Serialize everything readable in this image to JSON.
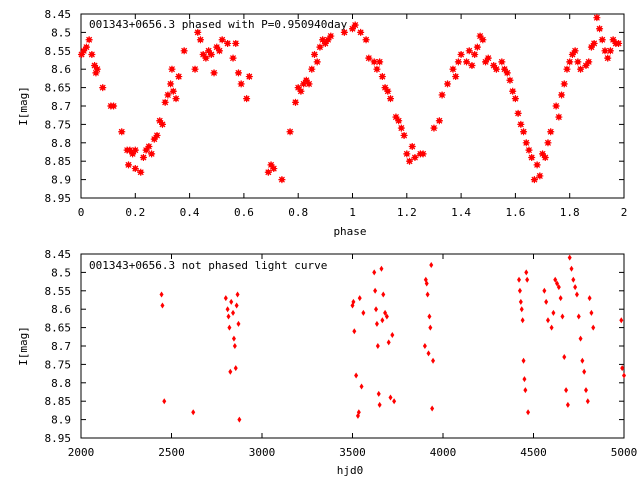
{
  "colors": {
    "points": "#ff0000",
    "frame": "#000000",
    "background": "#ffffff"
  },
  "chart_data": [
    {
      "type": "scatter",
      "title": "001343+0656.3 phased with P=0.950940day",
      "xlabel": "phase",
      "ylabel": "I[mag]",
      "xlim": [
        0,
        2
      ],
      "ylim": [
        8.95,
        8.45
      ],
      "y_inverted": true,
      "grid": false,
      "legend": "none",
      "xticks": [
        "0",
        "0.2",
        "0.4",
        "0.6",
        "0.8",
        "1",
        "1.2",
        "1.4",
        "1.6",
        "1.8",
        "2"
      ],
      "yticks": [
        "8.45",
        "8.5",
        "8.55",
        "8.6",
        "8.65",
        "8.7",
        "8.75",
        "8.8",
        "8.85",
        "8.9",
        "8.95"
      ],
      "marker": "filled-circle-cross",
      "x": [
        0.002,
        0.01,
        0.02,
        0.03,
        0.04,
        0.05,
        0.055,
        0.06,
        0.08,
        0.11,
        0.12,
        0.15,
        0.17,
        0.175,
        0.18,
        0.19,
        0.2,
        0.2,
        0.22,
        0.23,
        0.24,
        0.25,
        0.26,
        0.27,
        0.28,
        0.29,
        0.3,
        0.31,
        0.32,
        0.33,
        0.335,
        0.34,
        0.35,
        0.36,
        0.38,
        0.42,
        0.43,
        0.44,
        0.45,
        0.46,
        0.47,
        0.48,
        0.49,
        0.5,
        0.51,
        0.52,
        0.54,
        0.56,
        0.57,
        0.58,
        0.59,
        0.61,
        0.62,
        0.69,
        0.7,
        0.71,
        0.74,
        0.77,
        0.79,
        0.8,
        0.81,
        0.82,
        0.83,
        0.84,
        0.85,
        0.86,
        0.87,
        0.88,
        0.89,
        0.9,
        0.91,
        0.92,
        0.97,
        1.0,
        1.01,
        1.03,
        1.05,
        1.06,
        1.08,
        1.09,
        1.1,
        1.11,
        1.12,
        1.13,
        1.14,
        1.16,
        1.17,
        1.18,
        1.19,
        1.2,
        1.21,
        1.22,
        1.23,
        1.25,
        1.26,
        1.3,
        1.32,
        1.33,
        1.35,
        1.37,
        1.38,
        1.39,
        1.4,
        1.42,
        1.43,
        1.44,
        1.45,
        1.46,
        1.47,
        1.48,
        1.49,
        1.5,
        1.52,
        1.53,
        1.55,
        1.56,
        1.57,
        1.58,
        1.59,
        1.6,
        1.61,
        1.62,
        1.63,
        1.64,
        1.65,
        1.66,
        1.67,
        1.68,
        1.69,
        1.7,
        1.71,
        1.72,
        1.73,
        1.75,
        1.76,
        1.77,
        1.78,
        1.79,
        1.8,
        1.81,
        1.82,
        1.83,
        1.84,
        1.86,
        1.87,
        1.88,
        1.89,
        1.9,
        1.91,
        1.92,
        1.93,
        1.94,
        1.95,
        1.96,
        1.97,
        1.98
      ],
      "y": [
        8.56,
        8.55,
        8.54,
        8.52,
        8.56,
        8.59,
        8.61,
        8.6,
        8.65,
        8.7,
        8.7,
        8.77,
        8.82,
        8.86,
        8.82,
        8.83,
        8.82,
        8.87,
        8.88,
        8.84,
        8.82,
        8.81,
        8.83,
        8.79,
        8.78,
        8.74,
        8.75,
        8.69,
        8.67,
        8.64,
        8.6,
        8.66,
        8.68,
        8.62,
        8.55,
        8.6,
        8.5,
        8.52,
        8.56,
        8.57,
        8.55,
        8.56,
        8.61,
        8.54,
        8.55,
        8.52,
        8.53,
        8.57,
        8.53,
        8.61,
        8.64,
        8.68,
        8.62,
        8.88,
        8.86,
        8.87,
        8.9,
        8.77,
        8.69,
        8.65,
        8.66,
        8.64,
        8.63,
        8.64,
        8.6,
        8.56,
        8.58,
        8.54,
        8.52,
        8.53,
        8.52,
        8.51,
        8.5,
        8.49,
        8.48,
        8.5,
        8.52,
        8.57,
        8.58,
        8.6,
        8.58,
        8.62,
        8.65,
        8.66,
        8.68,
        8.73,
        8.74,
        8.76,
        8.78,
        8.83,
        8.85,
        8.81,
        8.84,
        8.83,
        8.83,
        8.76,
        8.74,
        8.67,
        8.64,
        8.6,
        8.62,
        8.58,
        8.56,
        8.58,
        8.55,
        8.59,
        8.56,
        8.54,
        8.51,
        8.52,
        8.58,
        8.57,
        8.59,
        8.6,
        8.58,
        8.6,
        8.61,
        8.63,
        8.66,
        8.68,
        8.72,
        8.75,
        8.77,
        8.8,
        8.82,
        8.84,
        8.9,
        8.86,
        8.89,
        8.83,
        8.84,
        8.8,
        8.77,
        8.7,
        8.73,
        8.67,
        8.64,
        8.6,
        8.58,
        8.56,
        8.55,
        8.58,
        8.6,
        8.59,
        8.58,
        8.54,
        8.53,
        8.46,
        8.49,
        8.52,
        8.55,
        8.57,
        8.55,
        8.52,
        8.53,
        8.53
      ]
    },
    {
      "type": "scatter",
      "title": "001343+0656.3 not phased light curve",
      "xlabel": "hjd0",
      "ylabel": "I[mag]",
      "xlim": [
        2000,
        5000
      ],
      "ylim": [
        8.95,
        8.45
      ],
      "y_inverted": true,
      "grid": false,
      "legend": "none",
      "xticks": [
        "2000",
        "2500",
        "3000",
        "3500",
        "4000",
        "4500",
        "5000"
      ],
      "yticks": [
        "8.45",
        "8.5",
        "8.55",
        "8.6",
        "8.65",
        "8.7",
        "8.75",
        "8.8",
        "8.85",
        "8.9",
        "8.95"
      ],
      "marker": "diamond",
      "x": [
        2445,
        2450,
        2460,
        2620,
        2800,
        2810,
        2815,
        2820,
        2825,
        2830,
        2840,
        2845,
        2850,
        2855,
        2860,
        2865,
        2870,
        2875,
        3500,
        3505,
        3510,
        3520,
        3530,
        3535,
        3540,
        3550,
        3560,
        3620,
        3625,
        3630,
        3635,
        3640,
        3645,
        3650,
        3660,
        3665,
        3670,
        3680,
        3690,
        3700,
        3710,
        3720,
        3730,
        3900,
        3905,
        3910,
        3915,
        3920,
        3925,
        3930,
        3935,
        3940,
        3945,
        4420,
        4425,
        4430,
        4435,
        4440,
        4445,
        4450,
        4455,
        4460,
        4465,
        4470,
        4560,
        4570,
        4580,
        4600,
        4610,
        4620,
        4630,
        4640,
        4650,
        4660,
        4670,
        4680,
        4690,
        4700,
        4710,
        4720,
        4730,
        4740,
        4750,
        4760,
        4770,
        4780,
        4790,
        4800,
        4810,
        4820,
        4830,
        4985,
        4990,
        5000
      ],
      "y": [
        8.56,
        8.59,
        8.85,
        8.88,
        8.57,
        8.6,
        8.62,
        8.65,
        8.77,
        8.58,
        8.61,
        8.68,
        8.7,
        8.76,
        8.59,
        8.56,
        8.64,
        8.9,
        8.59,
        8.58,
        8.66,
        8.78,
        8.89,
        8.88,
        8.57,
        8.81,
        8.61,
        8.5,
        8.55,
        8.6,
        8.64,
        8.7,
        8.83,
        8.86,
        8.49,
        8.63,
        8.56,
        8.61,
        8.62,
        8.69,
        8.84,
        8.67,
        8.85,
        8.7,
        8.52,
        8.53,
        8.56,
        8.72,
        8.62,
        8.65,
        8.48,
        8.87,
        8.74,
        8.52,
        8.55,
        8.58,
        8.6,
        8.63,
        8.74,
        8.79,
        8.82,
        8.5,
        8.52,
        8.88,
        8.55,
        8.58,
        8.63,
        8.65,
        8.61,
        8.52,
        8.53,
        8.54,
        8.57,
        8.62,
        8.73,
        8.82,
        8.86,
        8.46,
        8.49,
        8.52,
        8.54,
        8.56,
        8.62,
        8.68,
        8.74,
        8.77,
        8.82,
        8.85,
        8.57,
        8.61,
        8.65,
        8.63,
        8.76,
        8.78
      ]
    }
  ]
}
